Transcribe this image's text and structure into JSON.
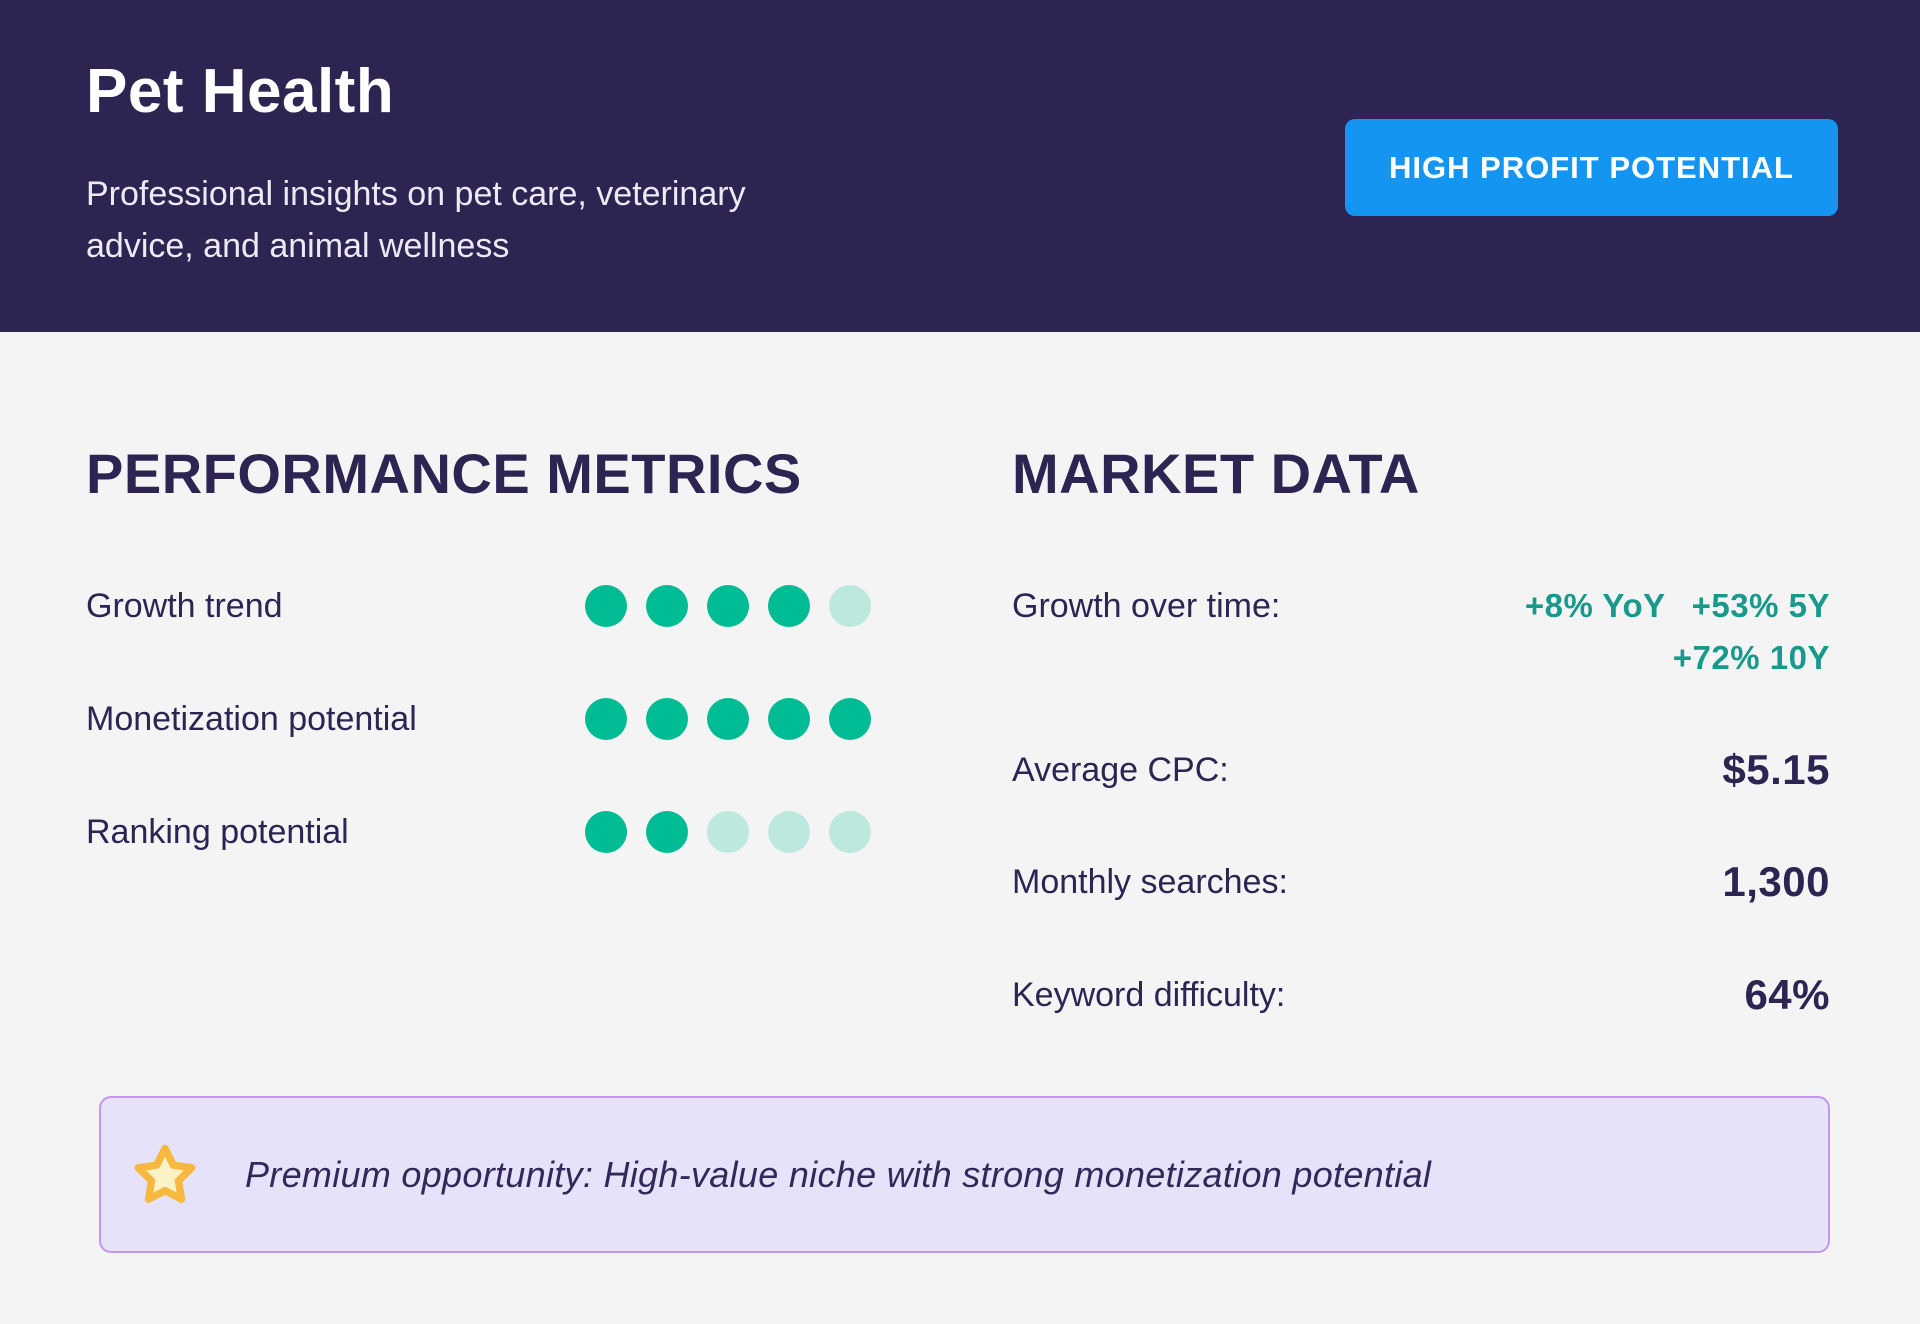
{
  "header": {
    "title": "Pet Health",
    "subtitle": "Professional insights on pet care, veterinary advice, and animal wellness",
    "badge_label": "HIGH PROFIT POTENTIAL"
  },
  "performance": {
    "heading": "PERFORMANCE METRICS",
    "rows": [
      {
        "label": "Growth trend",
        "score": 4,
        "max": 5
      },
      {
        "label": "Monetization potential",
        "score": 5,
        "max": 5
      },
      {
        "label": "Ranking potential",
        "score": 2,
        "max": 5
      }
    ]
  },
  "market": {
    "heading": "MARKET DATA",
    "growth": {
      "label": "Growth over time:",
      "values": [
        "+8% YoY",
        "+53% 5Y",
        "+72% 10Y"
      ]
    },
    "rows": [
      {
        "label": "Average CPC:",
        "value": "$5.15"
      },
      {
        "label": "Monthly searches:",
        "value": "1,300"
      },
      {
        "label": "Keyword difficulty:",
        "value": "64%"
      }
    ]
  },
  "banner": {
    "icon": "star-icon",
    "text": "Premium opportunity: High-value niche with strong monetization potential"
  },
  "colors": {
    "header_bg": "#2E2452",
    "body_bg": "#F4F4F5",
    "navy_text": "#2E2452",
    "badge_blue": "#1495F2",
    "dot_filled": "#00BC95",
    "dot_empty": "#BDE8DD",
    "teal_value_text": "#17998B",
    "banner_bg": "#E6E2F9",
    "banner_border": "#C495EC",
    "star_gold": "#F6B83E",
    "star_fill": "#FBF3C5"
  }
}
